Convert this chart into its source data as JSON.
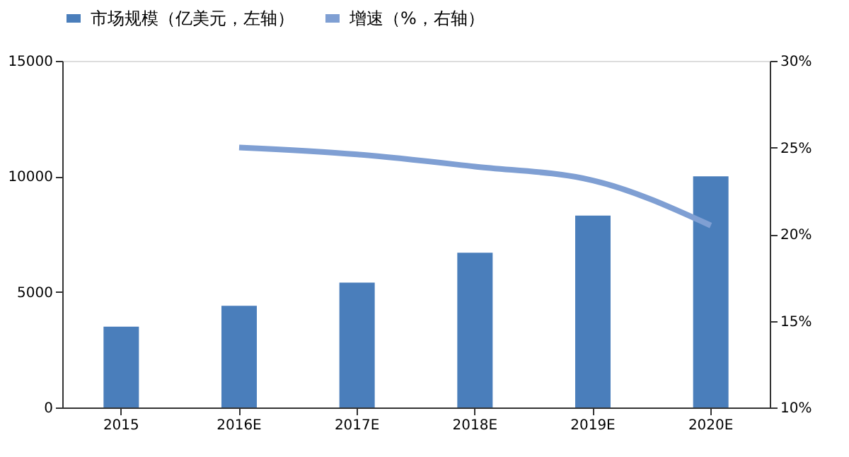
{
  "chart_data": {
    "type": "bar",
    "categories": [
      "2015",
      "2016E",
      "2017E",
      "2018E",
      "2019E",
      "2020E"
    ],
    "series": [
      {
        "name": "市场规模（亿美元，左轴）",
        "color": "#4a7ebb",
        "values": [
          3500,
          4400,
          5400,
          6700,
          8300,
          10000
        ]
      },
      {
        "name": "增速（%，右轴）",
        "type": "line",
        "axis": "y2",
        "color": "#7f9fd3",
        "values": [
          null,
          25,
          24.6,
          23.9,
          23.1,
          20.5
        ]
      }
    ],
    "ylim": [
      0,
      15000
    ],
    "yticks": [
      0,
      5000,
      10000,
      15000
    ],
    "y2lim": [
      10,
      30
    ],
    "y2ticks": [
      {
        "value": 10,
        "label": "10%"
      },
      {
        "value": 15,
        "label": "15%"
      },
      {
        "value": 20,
        "label": "20%"
      },
      {
        "value": 25,
        "label": "25%"
      },
      {
        "value": 30,
        "label": "30%"
      }
    ],
    "legend": "top",
    "grid": false
  }
}
